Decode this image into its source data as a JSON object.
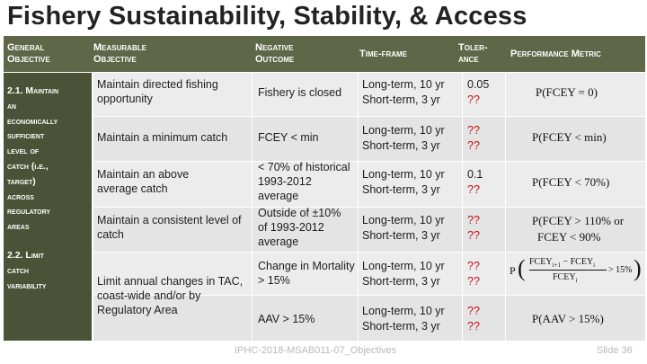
{
  "title": "Fishery Sustainability, Stability, & Access",
  "headers": {
    "general_objective": [
      "General",
      "Objective"
    ],
    "measurable_objective": [
      "Measurable",
      "Objective"
    ],
    "negative_outcome": [
      "Negative",
      "Outcome"
    ],
    "time_frame": "Time-frame",
    "tolerance": [
      "Toler-",
      "ance"
    ],
    "performance_metric": "Performance Metric"
  },
  "general_objectives": [
    {
      "lines": [
        "2.1. Maintain",
        "an",
        "economically",
        "sufficient",
        "level of",
        "catch (i.e.,",
        "target)",
        "across",
        "regulatory",
        "areas"
      ]
    },
    {
      "lines": [
        "2.2. Limit",
        "catch",
        "variability"
      ]
    }
  ],
  "rows": [
    {
      "measurable": "Maintain directed fishing opportunity",
      "negative": "Fishery is closed",
      "time": [
        "Long-term, 10 yr",
        "Short-term, 3 yr"
      ],
      "tolerance": [
        "0.05",
        "??"
      ],
      "metric": "P(FCEY = 0)"
    },
    {
      "measurable": "Maintain a minimum catch",
      "negative": "FCEY < min",
      "time": [
        "Long-term, 10 yr",
        "Short-term, 3 yr"
      ],
      "tolerance": [
        "??",
        "??"
      ],
      "metric": "P(FCEY < min)"
    },
    {
      "measurable": "Maintain an above average catch",
      "negative": "< 70% of historical 1993-2012 average",
      "time": [
        "Long-term, 10 yr",
        "Short-term, 3 yr"
      ],
      "tolerance": [
        "0.1",
        "??"
      ],
      "metric": "P(FCEY < 70%)"
    },
    {
      "measurable": "Maintain a consistent level of catch",
      "negative": "Outside of ±10% of 1993-2012 average",
      "time": [
        "Long-term, 10 yr",
        "Short-term, 3 yr"
      ],
      "tolerance": [
        "??",
        "??"
      ],
      "metric": [
        "P(FCEY > 110% or",
        "FCEY < 90%"
      ]
    },
    {
      "measurable": "Limit annual changes in TAC, coast-wide and/or by Regulatory Area",
      "negative": "Change in Mortality > 15%",
      "time": [
        "Long-term, 10 yr",
        "Short-term, 3 yr"
      ],
      "tolerance": [
        "??",
        "??"
      ],
      "metric": {
        "p": "P",
        "num_a": "FCEY",
        "num_a_sub": "i+1",
        "num_b": "FCEY",
        "num_b_sub": "i",
        "den": "FCEY",
        "den_sub": "i",
        "rhs": "> 15%"
      }
    },
    {
      "measurable": "",
      "negative": "AAV > 15%",
      "time": [
        "Long-term, 10 yr",
        "Short-term, 3 yr"
      ],
      "tolerance": [
        "??",
        "??"
      ],
      "metric": "P(AAV > 15%)"
    }
  ],
  "footer": {
    "doc_id": "IPHC-2018-MSAB011-07_Objectives",
    "slide": "Slide 36"
  }
}
